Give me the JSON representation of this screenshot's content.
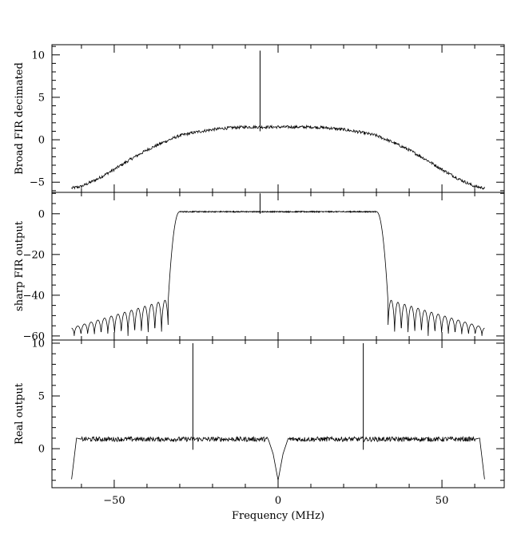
{
  "chart_data": [
    {
      "type": "line",
      "ylabel": "Broad FIR decimated",
      "xlim": [
        -69,
        69
      ],
      "ylim": [
        -6.2,
        11.2
      ],
      "yticks": [
        -5,
        0,
        5,
        10
      ],
      "yticklabels": [
        "−5",
        "0",
        "5",
        "10"
      ],
      "grid": false,
      "series": [
        {
          "x": [
            -63,
            -60,
            -55,
            -50,
            -45,
            -40,
            -35,
            -30,
            -25,
            -20,
            -15,
            -10,
            -5,
            0,
            5,
            10,
            15,
            20,
            25,
            30,
            35,
            40,
            45,
            50,
            55,
            60,
            63
          ],
          "values": [
            -5.7,
            -5.5,
            -4.6,
            -3.5,
            -2.3,
            -1.2,
            -0.3,
            0.5,
            0.9,
            1.2,
            1.4,
            1.5,
            1.5,
            1.5,
            1.5,
            1.5,
            1.4,
            1.2,
            0.9,
            0.5,
            -0.3,
            -1.2,
            -2.3,
            -3.5,
            -4.6,
            -5.5,
            -5.7
          ],
          "spikes": [
            {
              "x": -5.5,
              "y": 10.5
            }
          ]
        }
      ]
    },
    {
      "type": "line",
      "ylabel": "sharp FIR output",
      "xlim": [
        -69,
        69
      ],
      "ylim": [
        -62,
        10.5
      ],
      "yticks": [
        -60,
        -40,
        -20,
        0
      ],
      "yticklabels": [
        "−60",
        "−40",
        "−20",
        "0"
      ],
      "grid": false,
      "series": [
        {
          "passband": [
            -30,
            30
          ],
          "passband_level": 1,
          "transition_edges": [
            -33.5,
            33.5
          ],
          "stopband_ripple_peaks_at_edge": -42,
          "stopband_ripple_peaks_at_ends": -56,
          "stopband_floor": -60,
          "x_extent": [
            -63,
            63
          ],
          "spikes": [
            {
              "x": -5.5,
              "y": 10
            }
          ]
        }
      ]
    },
    {
      "type": "line",
      "xlabel": "Frequency (MHz)",
      "ylabel": "Real output",
      "xlim": [
        -69,
        69
      ],
      "ylim": [
        -3.7,
        10.3
      ],
      "xticks": [
        -50,
        0,
        50
      ],
      "xticklabels": [
        "−50",
        "0",
        "50"
      ],
      "yticks": [
        0,
        5,
        10
      ],
      "yticklabels": [
        "0",
        "5",
        "10"
      ],
      "grid": false,
      "series": [
        {
          "x": [
            -63,
            -61.5,
            -60,
            -50,
            -40,
            -30,
            -20,
            -10,
            -3,
            -1.5,
            0,
            1.5,
            3,
            10,
            20,
            30,
            40,
            50,
            60,
            61.5,
            63
          ],
          "values": [
            -2.9,
            1.0,
            0.9,
            0.9,
            0.9,
            0.9,
            0.9,
            0.9,
            0.9,
            -0.5,
            -3.0,
            -0.5,
            0.9,
            0.9,
            0.9,
            0.9,
            0.9,
            0.9,
            0.9,
            1.0,
            -2.9
          ],
          "spikes": [
            {
              "x": -26,
              "y": 10
            },
            {
              "x": 26,
              "y": 10
            }
          ]
        }
      ]
    }
  ]
}
